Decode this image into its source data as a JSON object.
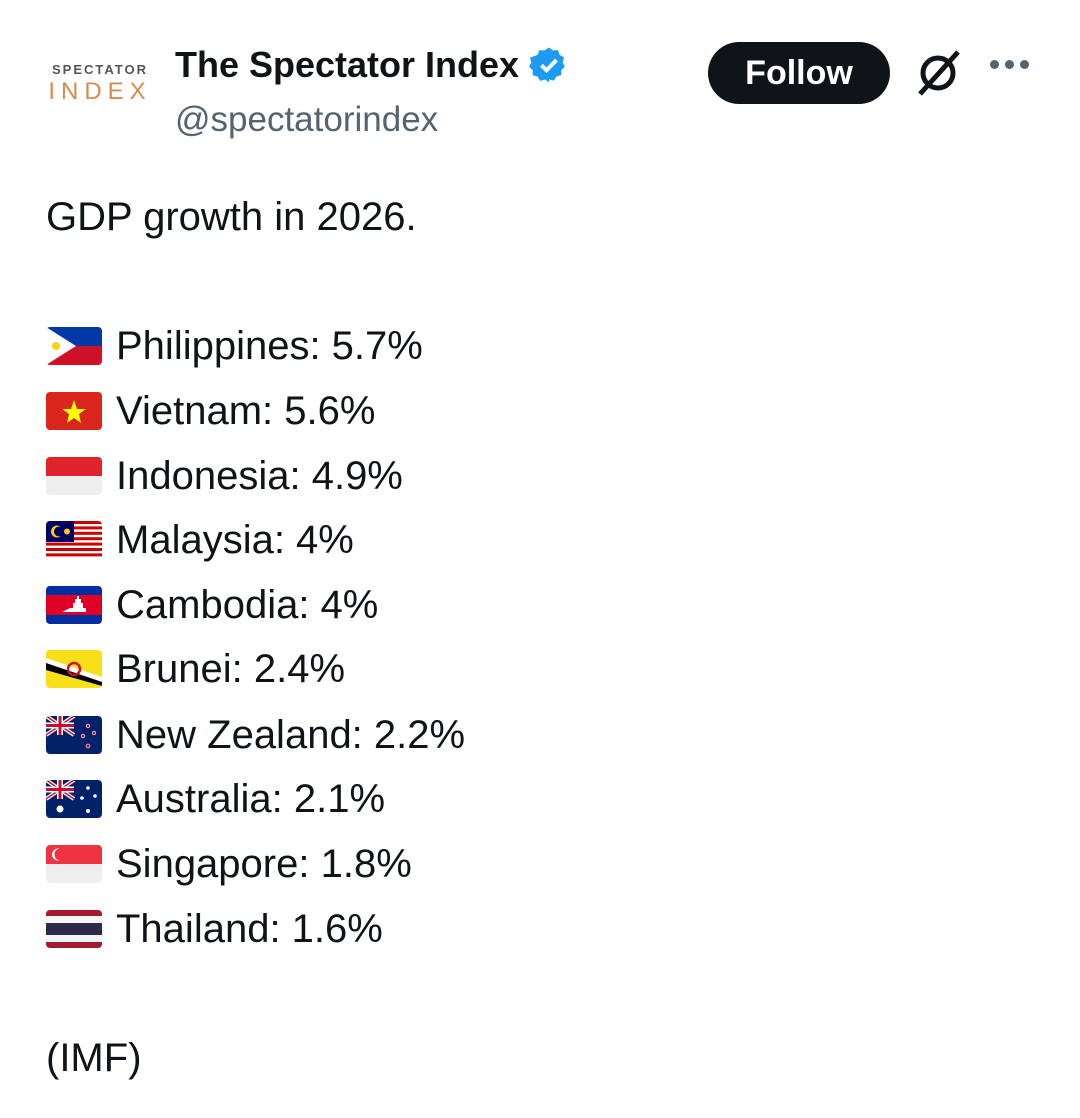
{
  "author": {
    "logo_top": "SPECTATOR",
    "logo_bottom": "INDEX",
    "name": "The Spectator Index",
    "handle": "@spectatorindex",
    "verified": true
  },
  "actions": {
    "follow_label": "Follow",
    "grok_icon": "grok-icon",
    "more_icon": "more-icon"
  },
  "tweet": {
    "headline": "GDP growth in 2026.",
    "items": [
      {
        "flag": "philippines",
        "text": "Philippines: 5.7%"
      },
      {
        "flag": "vietnam",
        "text": "Vietnam: 5.6%"
      },
      {
        "flag": "indonesia",
        "text": "Indonesia: 4.9%"
      },
      {
        "flag": "malaysia",
        "text": "Malaysia: 4%"
      },
      {
        "flag": "cambodia",
        "text": "Cambodia: 4%"
      },
      {
        "flag": "brunei",
        "text": "Brunei: 2.4%"
      },
      {
        "flag": "new-zealand",
        "text": "New Zealand: 2.2%"
      },
      {
        "flag": "australia",
        "text": "Australia: 2.1%"
      },
      {
        "flag": "singapore",
        "text": "Singapore: 1.8%"
      },
      {
        "flag": "thailand",
        "text": "Thailand: 1.6%"
      }
    ],
    "source": "(IMF)"
  },
  "colors": {
    "verified": "#1d9bf0",
    "follow_bg": "#0f1419",
    "handle": "#536471"
  }
}
